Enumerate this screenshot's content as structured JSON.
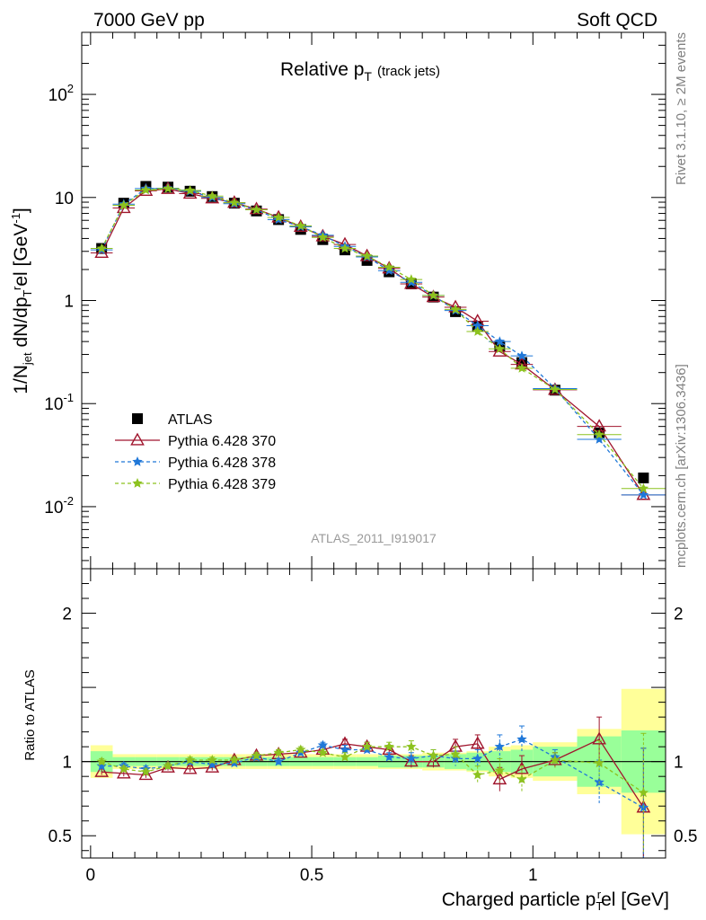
{
  "header": {
    "left": "7000 GeV pp",
    "right": "Soft QCD"
  },
  "side_labels": {
    "rivet": "Rivet 3.1.10, ≥ 2M events",
    "mcplots": "mcplots.cern.ch [arXiv:1306.3436]"
  },
  "plot": {
    "title_main": "Relative p",
    "title_sub": "T",
    "title_note": "(track jets)",
    "analysis_id": "ATLAS_2011_I919017",
    "ylabel": "1/N_jet dN/dp_T^rel [GeV^-1]",
    "ratio_ylabel": "Ratio to ATLAS",
    "xlabel": "Charged particle p_T^rel [GeV]"
  },
  "legend": [
    {
      "label": "ATLAS",
      "color": "#000000",
      "marker": "square-filled",
      "line": "none"
    },
    {
      "label": "Pythia 6.428 370",
      "color": "#a0152d",
      "marker": "triangle-open",
      "line": "solid"
    },
    {
      "label": "Pythia 6.428 378",
      "color": "#1f77d8",
      "marker": "star",
      "line": "dashed"
    },
    {
      "label": "Pythia 6.428 379",
      "color": "#8cc21e",
      "marker": "star",
      "line": "dashed"
    }
  ],
  "chart_data": {
    "type": "scatter",
    "title": "Relative pT (track jets)",
    "xlabel": "Charged particle pT rel [GeV]",
    "ylabel": "1/Njet dN/dpT rel [GeV^-1]",
    "xlim": [
      -0.02,
      1.3
    ],
    "ylim": [
      0.0025,
      400
    ],
    "ylog": true,
    "ratio_ylim": [
      0.35,
      2.3
    ],
    "xticks": [
      "0",
      "0.5",
      "1"
    ],
    "yticks": [
      "10^-2",
      "10^-1",
      "1",
      "10",
      "10^2"
    ],
    "ratio_yticks": [
      "0.5",
      "1",
      "2"
    ],
    "x": [
      0.025,
      0.075,
      0.125,
      0.175,
      0.225,
      0.275,
      0.325,
      0.375,
      0.425,
      0.475,
      0.525,
      0.575,
      0.625,
      0.675,
      0.725,
      0.775,
      0.825,
      0.875,
      0.925,
      0.975,
      1.05,
      1.15,
      1.25
    ],
    "xerr": [
      0.025,
      0.025,
      0.025,
      0.025,
      0.025,
      0.025,
      0.025,
      0.025,
      0.025,
      0.025,
      0.025,
      0.025,
      0.025,
      0.025,
      0.025,
      0.025,
      0.025,
      0.025,
      0.025,
      0.025,
      0.05,
      0.05,
      0.05
    ],
    "series": [
      {
        "name": "ATLAS",
        "values": [
          3.2,
          8.8,
          12.8,
          12.6,
          11.5,
          10.2,
          8.8,
          7.4,
          6.1,
          4.9,
          3.9,
          3.1,
          2.45,
          1.9,
          1.45,
          1.08,
          0.78,
          0.56,
          0.36,
          0.25,
          0.135,
          0.052,
          0.019
        ]
      },
      {
        "name": "Pythia 6.428 370",
        "values": [
          2.9,
          7.9,
          11.6,
          12.1,
          10.9,
          9.8,
          8.9,
          7.7,
          6.4,
          5.2,
          4.2,
          3.5,
          2.7,
          2.05,
          1.45,
          1.08,
          0.86,
          0.63,
          0.32,
          0.24,
          0.136,
          0.06,
          0.013
        ]
      },
      {
        "name": "Pythia 6.428 378",
        "values": [
          3.1,
          8.6,
          12.2,
          12.3,
          11.5,
          10.0,
          8.7,
          7.6,
          6.1,
          5.2,
          4.3,
          3.35,
          2.65,
          1.95,
          1.5,
          1.12,
          0.8,
          0.57,
          0.4,
          0.29,
          0.14,
          0.045,
          0.013
        ]
      },
      {
        "name": "Pythia 6.428 379",
        "values": [
          3.2,
          8.4,
          11.8,
          12.2,
          11.7,
          10.3,
          8.9,
          7.6,
          6.4,
          5.3,
          4.1,
          3.2,
          2.7,
          2.1,
          1.6,
          1.12,
          0.82,
          0.5,
          0.34,
          0.22,
          0.137,
          0.05,
          0.015
        ]
      }
    ],
    "ratios": [
      {
        "name": "Pythia 6.428 370",
        "values": [
          0.93,
          0.92,
          0.91,
          0.96,
          0.95,
          0.96,
          1.01,
          1.04,
          1.05,
          1.06,
          1.08,
          1.12,
          1.1,
          1.08,
          1.0,
          1.0,
          1.1,
          1.12,
          0.88,
          0.95,
          1.01,
          1.15,
          0.69
        ]
      },
      {
        "name": "Pythia 6.428 378",
        "values": [
          0.97,
          0.97,
          0.95,
          0.97,
          1.0,
          0.98,
          0.99,
          1.03,
          1.0,
          1.06,
          1.11,
          1.08,
          1.08,
          1.03,
          1.02,
          1.04,
          1.02,
          1.02,
          1.1,
          1.15,
          1.03,
          0.86,
          0.69
        ]
      },
      {
        "name": "Pythia 6.428 379",
        "values": [
          1.0,
          0.95,
          0.93,
          0.97,
          1.01,
          1.01,
          1.01,
          1.04,
          1.06,
          1.08,
          1.06,
          1.03,
          1.1,
          1.1,
          1.1,
          1.04,
          1.05,
          0.91,
          0.94,
          0.88,
          1.01,
          0.99,
          0.79
        ]
      }
    ],
    "ratio_errors": [
      0.02,
      0.02,
      0.02,
      0.02,
      0.02,
      0.02,
      0.02,
      0.02,
      0.02,
      0.02,
      0.02,
      0.03,
      0.03,
      0.03,
      0.04,
      0.04,
      0.05,
      0.06,
      0.08,
      0.09,
      0.05,
      0.15,
      0.4
    ],
    "band_stat": [
      0.07,
      0.03,
      0.03,
      0.03,
      0.03,
      0.03,
      0.03,
      0.03,
      0.03,
      0.03,
      0.03,
      0.03,
      0.03,
      0.04,
      0.04,
      0.04,
      0.05,
      0.06,
      0.07,
      0.08,
      0.1,
      0.17,
      0.21
    ],
    "band_total": [
      0.11,
      0.05,
      0.05,
      0.05,
      0.05,
      0.05,
      0.05,
      0.05,
      0.05,
      0.05,
      0.05,
      0.05,
      0.05,
      0.05,
      0.05,
      0.06,
      0.06,
      0.07,
      0.1,
      0.11,
      0.13,
      0.22,
      0.49
    ],
    "grid": false,
    "legend_position": "lower-left"
  }
}
